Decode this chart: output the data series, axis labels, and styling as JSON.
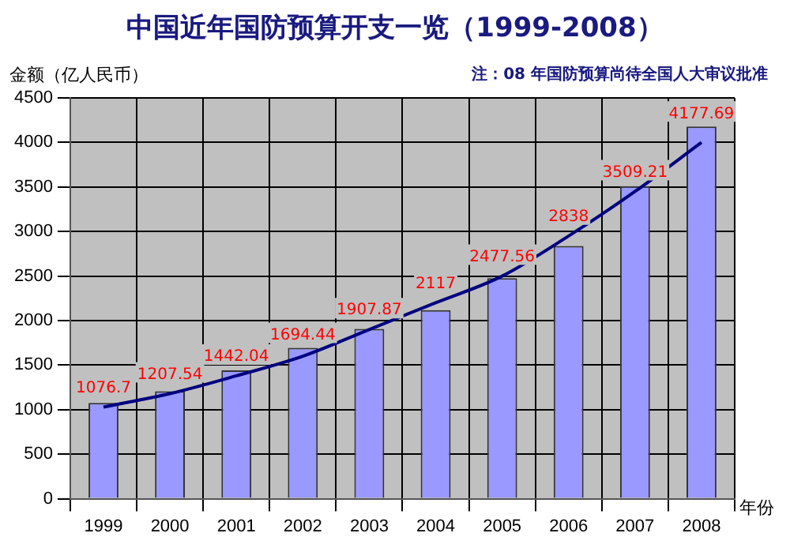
{
  "chart_data": {
    "type": "bar",
    "title": "中国近年国防预算开支一览（1999-2008）",
    "subtitle": "注：08 年国防预算尚待全国人大审议批准",
    "xlabel": "年份",
    "ylabel": "金额（亿人民币）",
    "categories": [
      "1999",
      "2000",
      "2001",
      "2002",
      "2003",
      "2004",
      "2005",
      "2006",
      "2007",
      "2008"
    ],
    "series": [
      {
        "color": "#9999ff",
        "values": [
          1076.7,
          1207.54,
          1442.04,
          1694.44,
          1907.87,
          2117,
          2477.56,
          2838,
          3509.21,
          4177.69
        ],
        "value_labels": [
          "1076.7",
          "1207.54",
          "1442.04",
          "1694.44",
          "1907.87",
          "2117",
          "2477.56",
          "2838",
          "3509.21",
          "4177.69"
        ]
      },
      {
        "type": "line",
        "color": "#000080",
        "values": [
          1030,
          1180,
          1380,
          1600,
          1900,
          2200,
          2500,
          2950,
          3450,
          4000
        ]
      }
    ],
    "ylim": [
      0,
      4500
    ],
    "yticks": [
      0,
      500,
      1000,
      1500,
      2000,
      2500,
      3000,
      3500,
      4000,
      4500
    ],
    "grid": true,
    "legend": false,
    "marker": "none",
    "line_style": "solid"
  }
}
